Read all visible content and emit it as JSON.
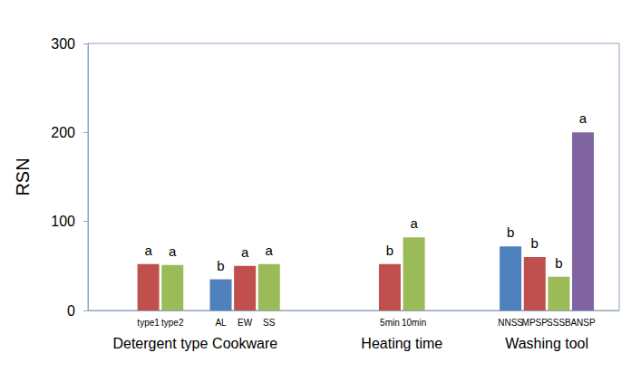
{
  "chart_data": {
    "type": "bar",
    "ylabel": "RSN",
    "ylim": [
      0,
      300
    ],
    "yticks": [
      0,
      100,
      200,
      300
    ],
    "grid": false,
    "groups": [
      {
        "name": "Detergent type",
        "categories": [
          "type1",
          "type2"
        ],
        "values": [
          52,
          51
        ],
        "colors": [
          "#c0504d",
          "#9bbb59"
        ],
        "annotations": [
          "a",
          "a"
        ]
      },
      {
        "name": "Cookware",
        "categories": [
          "AL",
          "EW",
          "SS"
        ],
        "values": [
          35,
          50,
          52
        ],
        "colors": [
          "#4f81bd",
          "#c0504d",
          "#9bbb59"
        ],
        "annotations": [
          "b",
          "a",
          "a"
        ]
      },
      {
        "name": "Heating time",
        "categories": [
          "5min",
          "10min"
        ],
        "values": [
          52,
          82
        ],
        "colors": [
          "#c0504d",
          "#9bbb59"
        ],
        "annotations": [
          "b",
          "a"
        ]
      },
      {
        "name": "Washing tool",
        "categories": [
          "NNSS",
          "MPSP",
          "SSSB",
          "ANSP"
        ],
        "values": [
          72,
          60,
          38,
          200
        ],
        "colors": [
          "#4f81bd",
          "#c0504d",
          "#9bbb59",
          "#8064a2"
        ],
        "annotations": [
          "b",
          "b",
          "b",
          "a"
        ]
      }
    ]
  }
}
